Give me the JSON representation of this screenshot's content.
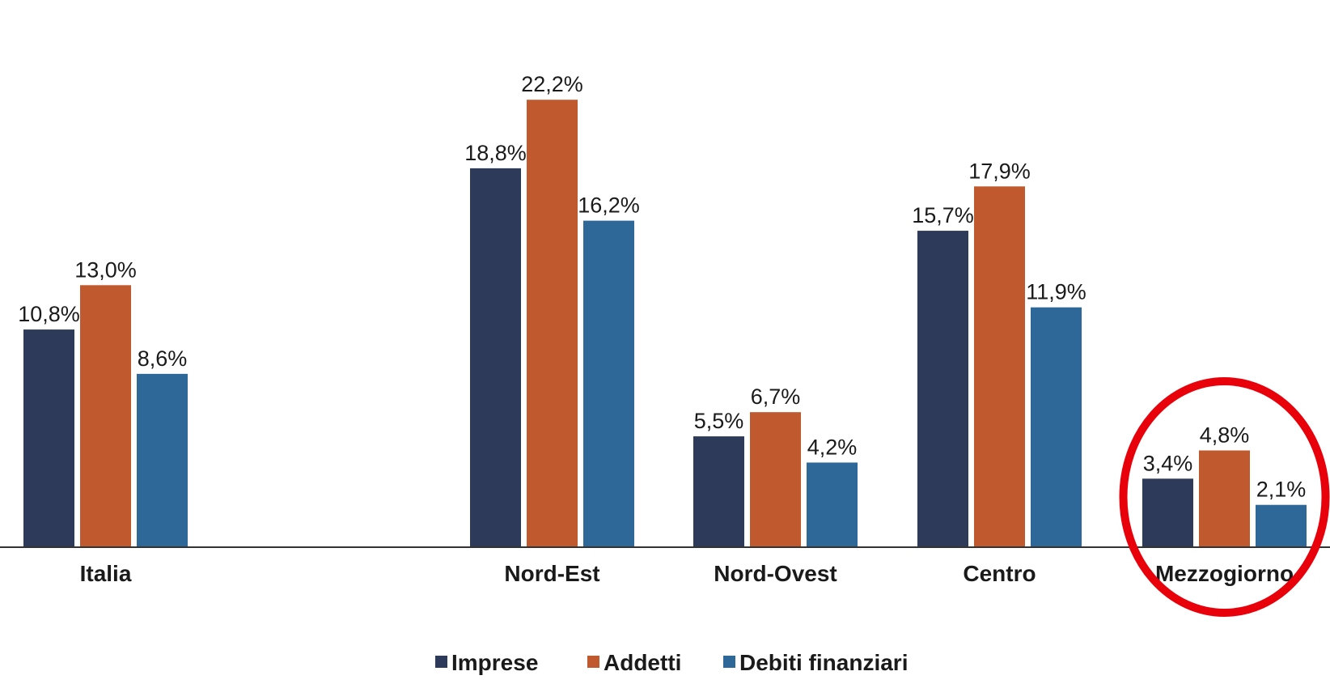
{
  "chart_data": {
    "type": "bar",
    "categories": [
      "Italia",
      "",
      "Nord-Est",
      "Nord-Ovest",
      "Centro",
      "Mezzogiorno"
    ],
    "series": [
      {
        "name": "Imprese",
        "color": "#2d3a5a",
        "values": [
          10.8,
          null,
          18.8,
          5.5,
          15.7,
          3.4
        ],
        "labels": [
          "10,8%",
          "",
          "18,8%",
          "5,5%",
          "15,7%",
          "3,4%"
        ]
      },
      {
        "name": "Addetti",
        "color": "#c05a2e",
        "values": [
          13.0,
          null,
          22.2,
          6.7,
          17.9,
          4.8
        ],
        "labels": [
          "13,0%",
          "",
          "22,2%",
          "6,7%",
          "17,9%",
          "4,8%"
        ]
      },
      {
        "name": "Debiti finanziari",
        "color": "#2e6898",
        "values": [
          8.6,
          null,
          16.2,
          4.2,
          11.9,
          2.1
        ],
        "labels": [
          "8,6%",
          "",
          "16,2%",
          "4,2%",
          "11,9%",
          "2,1%"
        ]
      }
    ],
    "ylim": [
      0,
      24
    ],
    "legend_position": "bottom",
    "grid": false,
    "highlight": {
      "category": "Mezzogiorno",
      "shape": "circle",
      "color": "#e8000b"
    }
  }
}
